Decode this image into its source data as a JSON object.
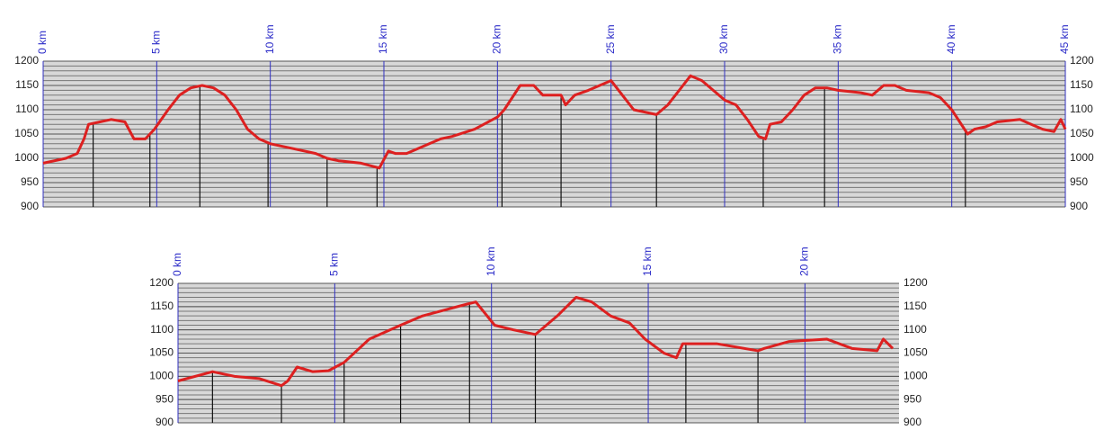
{
  "chart_data": [
    {
      "type": "line",
      "color": "#dd2020",
      "x": [
        0,
        1,
        1.5,
        1.8,
        2,
        2.5,
        3,
        3.6,
        4,
        4.5,
        4.9,
        5.5,
        6,
        6.5,
        7,
        7.5,
        8,
        8.5,
        9,
        9.5,
        10,
        11,
        12,
        12.5,
        13,
        14,
        14.8,
        15.2,
        15.5,
        16,
        17,
        17.5,
        18,
        19,
        20,
        20.3,
        21,
        21.6,
        22,
        22.8,
        23,
        23.4,
        24,
        25,
        25.5,
        26,
        27,
        27.5,
        28,
        28.5,
        29,
        29.5,
        30,
        30.5,
        31,
        31.5,
        31.8,
        32,
        32.5,
        33,
        33.5,
        34,
        34.5,
        35,
        36,
        36.5,
        37,
        37.5,
        38,
        39,
        39.5,
        40,
        40.7,
        41,
        41.5,
        42,
        43,
        43.5,
        44,
        44.5,
        44.8,
        45
      ],
      "values": [
        990,
        1000,
        1010,
        1040,
        1070,
        1075,
        1080,
        1075,
        1040,
        1040,
        1060,
        1100,
        1130,
        1145,
        1150,
        1145,
        1130,
        1100,
        1060,
        1040,
        1030,
        1020,
        1010,
        1000,
        995,
        990,
        980,
        1015,
        1010,
        1010,
        1030,
        1040,
        1045,
        1060,
        1085,
        1100,
        1150,
        1150,
        1130,
        1130,
        1110,
        1130,
        1140,
        1160,
        1130,
        1100,
        1090,
        1110,
        1140,
        1170,
        1160,
        1140,
        1120,
        1110,
        1080,
        1045,
        1040,
        1070,
        1075,
        1100,
        1130,
        1145,
        1145,
        1140,
        1135,
        1130,
        1150,
        1150,
        1140,
        1135,
        1125,
        1100,
        1050,
        1060,
        1065,
        1075,
        1080,
        1070,
        1060,
        1055,
        1080,
        1060
      ],
      "markers": [
        2.2,
        4.7,
        6.9,
        9.9,
        12.5,
        14.7,
        20.2,
        22.8,
        27.0,
        31.7,
        34.4,
        40.6
      ],
      "xlim": [
        0,
        45
      ],
      "xticks": [
        {
          "value": 0,
          "label": "0 km"
        },
        {
          "value": 5,
          "label": "5 km"
        },
        {
          "value": 10,
          "label": "10 km"
        },
        {
          "value": 15,
          "label": "15 km"
        },
        {
          "value": 20,
          "label": "20 km"
        },
        {
          "value": 25,
          "label": "25 km"
        },
        {
          "value": 30,
          "label": "30 km"
        },
        {
          "value": 35,
          "label": "35 km"
        },
        {
          "value": 40,
          "label": "40 km"
        },
        {
          "value": 45,
          "label": "45 km"
        }
      ],
      "ylim": [
        900,
        1200
      ],
      "yticks": [
        900,
        950,
        1000,
        1050,
        1100,
        1150,
        1200
      ],
      "yminor": 10
    },
    {
      "type": "line",
      "color": "#dd2020",
      "x": [
        0,
        1.1,
        1.8,
        2.6,
        3.3,
        3.5,
        3.8,
        4.3,
        4.8,
        5.3,
        6.1,
        7.1,
        7.8,
        9.2,
        9.5,
        10.1,
        10.7,
        11.4,
        12.1,
        12.7,
        13.2,
        13.8,
        14.4,
        14.9,
        15.5,
        15.9,
        16.1,
        16.7,
        17.2,
        18.5,
        18.7,
        19.5,
        20.7,
        21.5,
        22.3,
        22.5,
        22.8
      ],
      "values": [
        990,
        1010,
        1000,
        995,
        980,
        990,
        1020,
        1010,
        1012,
        1030,
        1080,
        1110,
        1130,
        1155,
        1160,
        1110,
        1100,
        1090,
        1130,
        1170,
        1160,
        1130,
        1115,
        1080,
        1050,
        1040,
        1070,
        1070,
        1070,
        1055,
        1060,
        1075,
        1080,
        1060,
        1055,
        1080,
        1060
      ],
      "markers": [
        1.1,
        3.3,
        5.3,
        7.1,
        9.3,
        11.4,
        16.2,
        18.5
      ],
      "xlim": [
        0,
        23
      ],
      "xticks": [
        {
          "value": 0,
          "label": "0 km"
        },
        {
          "value": 5,
          "label": "5 km"
        },
        {
          "value": 10,
          "label": "10 km"
        },
        {
          "value": 15,
          "label": "15 km"
        },
        {
          "value": 20,
          "label": "20 km"
        }
      ],
      "ylim": [
        900,
        1200
      ],
      "yticks": [
        900,
        950,
        1000,
        1050,
        1100,
        1150,
        1200
      ],
      "yminor": 10
    }
  ]
}
